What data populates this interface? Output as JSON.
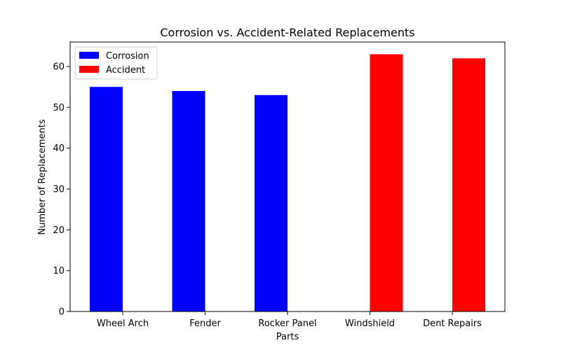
{
  "chart_data": {
    "type": "bar",
    "title": "Corrosion vs. Accident-Related Replacements",
    "xlabel": "Parts",
    "ylabel": "Number of Replacements",
    "categories": [
      "Wheel Arch",
      "Fender",
      "Rocker Panel",
      "Windshield",
      "Dent Repairs"
    ],
    "series": [
      {
        "name": "Corrosion",
        "color": "#0000ff",
        "values": [
          55,
          54,
          53,
          0,
          0
        ]
      },
      {
        "name": "Accident",
        "color": "#ff0000",
        "values": [
          0,
          0,
          0,
          63,
          62
        ]
      }
    ],
    "ylim": [
      0,
      66
    ],
    "yticks": [
      0,
      10,
      20,
      30,
      40,
      50,
      60
    ],
    "grid": false,
    "legend_position": "top-left"
  }
}
